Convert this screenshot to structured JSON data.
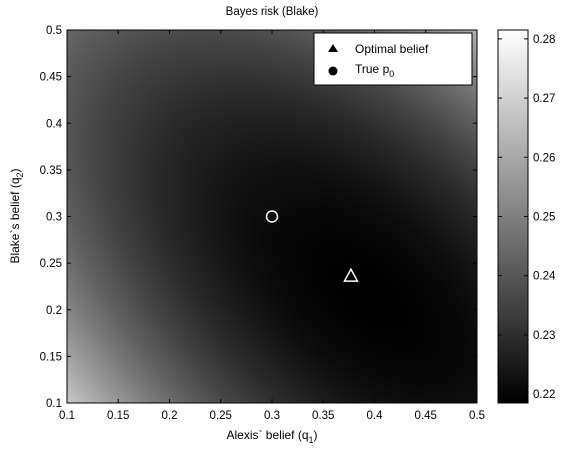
{
  "chart_data": {
    "type": "heatmap",
    "title": "Bayes risk (Blake)",
    "xlabel": "Alexis` belief (q",
    "xlabel_sub": "1",
    "xlabel_suffix": ")",
    "ylabel": "Blake`s belief (q",
    "ylabel_sub": "2",
    "ylabel_suffix": ")",
    "xlim": [
      0.1,
      0.5
    ],
    "ylim": [
      0.1,
      0.5
    ],
    "x_ticks": [
      "0.1",
      "0.15",
      "0.2",
      "0.25",
      "0.3",
      "0.35",
      "0.4",
      "0.45",
      "0.5"
    ],
    "y_ticks": [
      "0.1",
      "0.15",
      "0.2",
      "0.25",
      "0.3",
      "0.35",
      "0.4",
      "0.45",
      "0.5"
    ],
    "colorbar": {
      "range": [
        0.2185,
        0.2815
      ],
      "ticks": [
        "0.22",
        "0.23",
        "0.24",
        "0.25",
        "0.26",
        "0.27",
        "0.28"
      ],
      "colormap": "gray"
    },
    "minimum": {
      "q1": 0.395,
      "q2": 0.215,
      "value": 0.2185
    },
    "markers": [
      {
        "name": "Optimal belief",
        "shape": "triangle",
        "q1": 0.377,
        "q2": 0.236
      },
      {
        "name": "True p",
        "name_sub": "0",
        "shape": "circle",
        "q1": 0.3,
        "q2": 0.3
      }
    ],
    "legend_position": "top-right",
    "grid": false
  }
}
